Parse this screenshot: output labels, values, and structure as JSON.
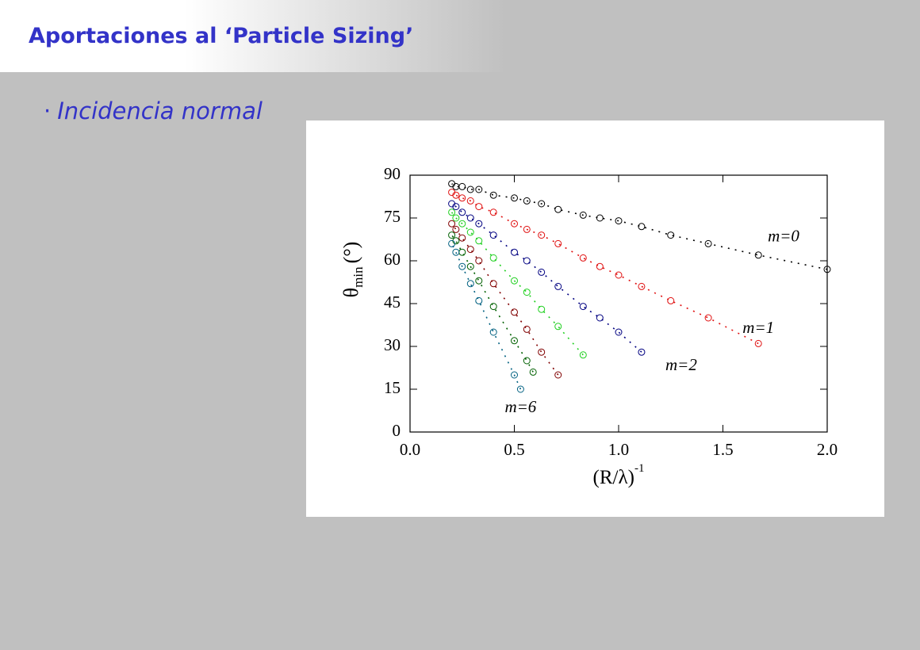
{
  "header": {
    "title": "Aportaciones al ‘Particle Sizing’"
  },
  "bullet": {
    "marker": "·",
    "text": "Incidencia normal"
  },
  "chart_data": {
    "type": "scatter",
    "ylabel": {
      "symbol": "θ",
      "subscript": "min",
      "unit": "(°)"
    },
    "xlabel": {
      "text": "(R/λ)",
      "superscript": "-1"
    },
    "xlim": [
      0,
      2
    ],
    "xticks": [
      {
        "value": 0,
        "label": "0.0"
      },
      0.5,
      {
        "value": 1,
        "label": "1.0"
      },
      1.5,
      {
        "value": 2,
        "label": "2.0"
      }
    ],
    "ylim": [
      0,
      90
    ],
    "yticks": [
      0,
      15,
      30,
      45,
      60,
      75,
      90
    ],
    "series": [
      {
        "name": "m=0",
        "color": "#000000",
        "x": [
          2,
          1.67,
          1.43,
          1.25,
          1.11,
          1,
          0.91,
          0.83,
          0.71,
          0.63,
          0.56,
          0.5,
          0.4,
          0.33,
          0.29,
          0.25,
          0.22,
          0.2
        ],
        "values": [
          57,
          62,
          66,
          69,
          72,
          74,
          75,
          76,
          78,
          80,
          81,
          82,
          83,
          85,
          85,
          86,
          86,
          87
        ]
      },
      {
        "name": "m=1",
        "color": "#e01010",
        "x": [
          1.67,
          1.43,
          1.25,
          1.11,
          1,
          0.91,
          0.83,
          0.71,
          0.63,
          0.56,
          0.5,
          0.4,
          0.33,
          0.29,
          0.25,
          0.22,
          0.2
        ],
        "values": [
          31,
          40,
          46,
          51,
          55,
          58,
          61,
          66,
          69,
          71,
          73,
          77,
          79,
          81,
          82,
          83,
          84
        ]
      },
      {
        "name": "m=2",
        "color": "#000080",
        "x": [
          1.11,
          1,
          0.91,
          0.83,
          0.71,
          0.63,
          0.56,
          0.5,
          0.4,
          0.33,
          0.29,
          0.25,
          0.22,
          0.2
        ],
        "values": [
          28,
          35,
          40,
          44,
          51,
          56,
          60,
          63,
          69,
          73,
          75,
          77,
          79,
          80
        ]
      },
      {
        "color": "#20d020",
        "x": [
          0.83,
          0.71,
          0.63,
          0.56,
          0.5,
          0.4,
          0.33,
          0.29,
          0.25,
          0.22,
          0.2
        ],
        "values": [
          27,
          37,
          43,
          49,
          53,
          61,
          67,
          70,
          73,
          75,
          77
        ]
      },
      {
        "color": "#800000",
        "x": [
          0.71,
          0.63,
          0.56,
          0.5,
          0.4,
          0.33,
          0.29,
          0.25,
          0.22,
          0.2
        ],
        "values": [
          20,
          28,
          36,
          42,
          52,
          60,
          64,
          68,
          71,
          73
        ]
      },
      {
        "color": "#006000",
        "x": [
          0.59,
          0.56,
          0.5,
          0.4,
          0.33,
          0.29,
          0.25,
          0.22,
          0.2
        ],
        "values": [
          21,
          25,
          32,
          44,
          53,
          58,
          63,
          67,
          69
        ]
      },
      {
        "name": "m=6",
        "color": "#006080",
        "x": [
          0.53,
          0.5,
          0.4,
          0.33,
          0.29,
          0.25,
          0.22,
          0.2
        ],
        "values": [
          15,
          20,
          35,
          46,
          52,
          58,
          63,
          66
        ]
      }
    ]
  }
}
